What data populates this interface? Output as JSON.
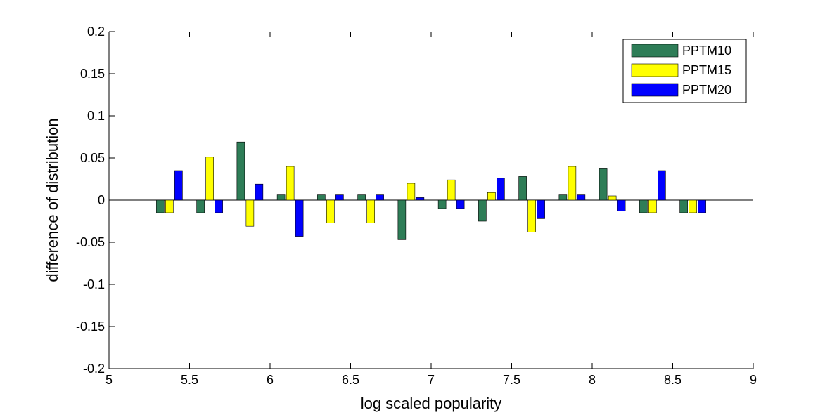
{
  "chart_data": {
    "type": "bar",
    "xlabel": "log scaled popularity",
    "ylabel": "difference of distribution",
    "xlim": [
      5,
      9
    ],
    "ylim": [
      -0.2,
      0.2
    ],
    "xticks": [
      "5",
      "5.5",
      "6",
      "6.5",
      "7",
      "7.5",
      "8",
      "8.5",
      "9"
    ],
    "yticks": [
      "-0.2",
      "-0.15",
      "-0.1",
      "-0.05",
      "0",
      "0.05",
      "0.1",
      "0.15",
      "0.2"
    ],
    "x": [
      5.375,
      5.625,
      5.875,
      6.125,
      6.375,
      6.625,
      6.875,
      7.125,
      7.375,
      7.625,
      7.875,
      8.125,
      8.375,
      8.625
    ],
    "series": [
      {
        "name": "PPTM10",
        "color": "#2e7d57",
        "values": [
          -0.015,
          -0.015,
          0.069,
          0.007,
          0.007,
          0.007,
          -0.047,
          -0.01,
          -0.025,
          0.028,
          0.007,
          0.038,
          -0.015,
          -0.015
        ]
      },
      {
        "name": "PPTM15",
        "color": "#ffff00",
        "values": [
          -0.015,
          0.051,
          -0.031,
          0.04,
          -0.027,
          -0.027,
          0.02,
          0.024,
          0.009,
          -0.038,
          0.04,
          0.005,
          -0.015,
          -0.015
        ]
      },
      {
        "name": "PPTM20",
        "color": "#0000ff",
        "values": [
          0.035,
          -0.015,
          0.019,
          -0.043,
          0.007,
          0.007,
          0.003,
          -0.01,
          0.026,
          -0.022,
          0.007,
          -0.013,
          0.035,
          -0.015
        ]
      }
    ],
    "legend_position": "top-right",
    "grid": false
  }
}
